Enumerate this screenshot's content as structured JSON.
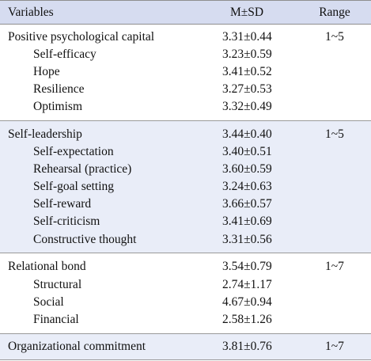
{
  "header": {
    "variables": "Variables",
    "msd": "M±SD",
    "range": "Range"
  },
  "groups": [
    {
      "name": "Positive psychological capital",
      "msd": "3.31±0.44",
      "range": "1~5",
      "items": [
        {
          "name": "Self-efficacy",
          "msd": "3.23±0.59"
        },
        {
          "name": "Hope",
          "msd": "3.41±0.52"
        },
        {
          "name": "Resilience",
          "msd": "3.27±0.53"
        },
        {
          "name": "Optimism",
          "msd": "3.32±0.49"
        }
      ]
    },
    {
      "name": "Self-leadership",
      "msd": "3.44±0.40",
      "range": "1~5",
      "items": [
        {
          "name": "Self-expectation",
          "msd": "3.40±0.51"
        },
        {
          "name": "Rehearsal (practice)",
          "msd": "3.60±0.59"
        },
        {
          "name": "Self-goal setting",
          "msd": "3.24±0.63"
        },
        {
          "name": "Self-reward",
          "msd": "3.66±0.57"
        },
        {
          "name": "Self-criticism",
          "msd": "3.41±0.69"
        },
        {
          "name": "Constructive thought",
          "msd": "3.31±0.56"
        }
      ]
    },
    {
      "name": "Relational bond",
      "msd": "3.54±0.79",
      "range": "1~7",
      "items": [
        {
          "name": "Structural",
          "msd": "2.74±1.17"
        },
        {
          "name": "Social",
          "msd": "4.67±0.94"
        },
        {
          "name": "Financial",
          "msd": "2.58±1.26"
        }
      ]
    },
    {
      "name": "Organizational commitment",
      "msd": "3.81±0.76",
      "range": "1~7",
      "items": []
    }
  ]
}
